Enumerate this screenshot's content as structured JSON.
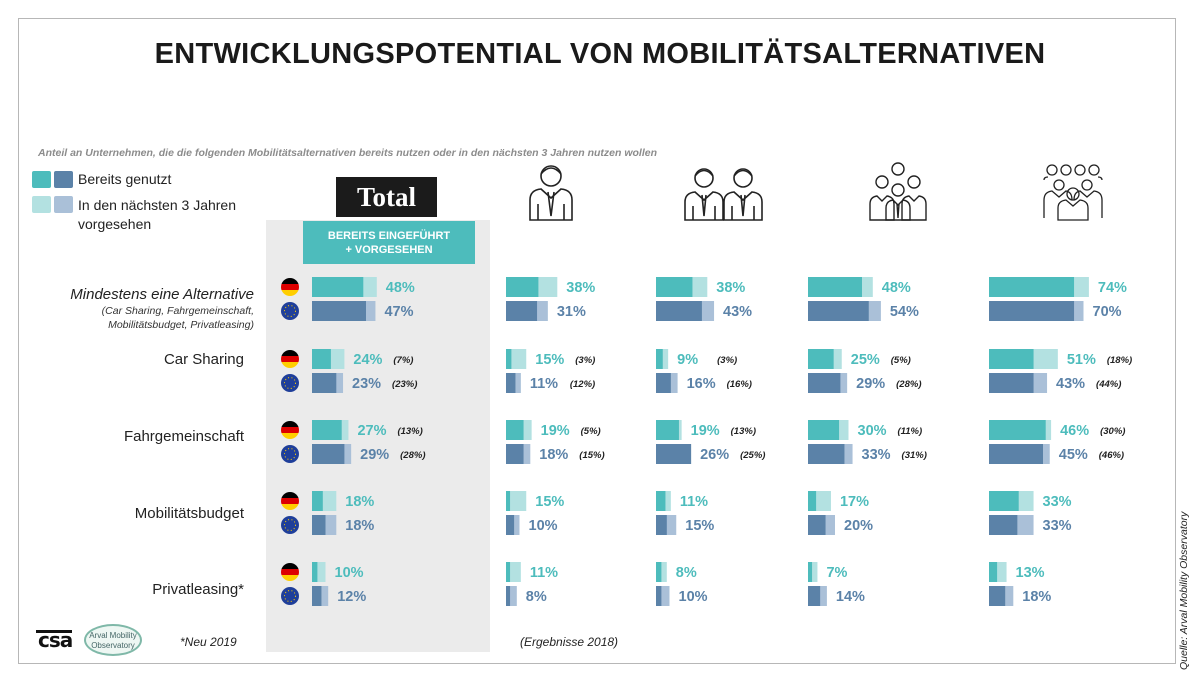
{
  "title": "ENTWICKLUNGSPOTENTIAL VON MOBILITÄTSALTERNATIVEN",
  "subtitle": "Anteil an Unternehmen, die die folgenden Mobilitätsalternativen bereits nutzen oder in den nächsten 3 Jahren nutzen wollen",
  "legend": {
    "used": "Bereits genutzt",
    "planned": "In den nächsten 3 Jahren vorgesehen",
    "planned_line1": "In den nächsten 3 Jahren",
    "planned_line2": "vorgesehen"
  },
  "total_label": "Total",
  "badge": {
    "line1": "BEREITS EINGEFÜHRT",
    "line2": "+ VORGESEHEN"
  },
  "footnote": "*Neu 2019",
  "results_note": "(Ergebnisse 2018)",
  "source": "Quelle: Arval Mobility Observatory",
  "logos": {
    "csa": "csa",
    "arval_line1": "Arval Mobility",
    "arval_line2": "Observatory"
  },
  "colors": {
    "teal_used": "#4dbcbc",
    "teal_planned": "#b3e1e1",
    "blue_used": "#5b82a8",
    "blue_planned": "#aac0d8",
    "de_flag": [
      "#000000",
      "#dd0000",
      "#ffce00"
    ],
    "eu_flag": "#1f3f9a"
  },
  "row_labels": [
    {
      "label": "Mindestens eine Alternative",
      "sub": [
        "(Car Sharing, Fahrgemeinschaft,",
        "Mobilitätsbudget, Privatleasing)"
      ]
    },
    {
      "label": "Car Sharing"
    },
    {
      "label": "Fahrgemeinschaft"
    },
    {
      "label": "Mobilitätsbudget"
    },
    {
      "label": "Privatleasing*"
    }
  ],
  "chart_data": {
    "type": "bar",
    "orientation": "horizontal",
    "title": "ENTWICKLUNGSPOTENTIAL VON MOBILITÄTSALTERNATIVEN",
    "series_meaning": {
      "dark": "Bereits genutzt",
      "light": "In den nächsten 3 Jahren vorgesehen"
    },
    "regions": [
      "Deutschland",
      "Europa"
    ],
    "region_icons": [
      "de-flag-icon",
      "eu-flag-icon"
    ],
    "panels": [
      {
        "icon": "total-label",
        "rows": [
          [
            {
              "total": 48,
              "used": 38
            },
            {
              "total": 47,
              "used": 40
            }
          ],
          [
            {
              "total": 24,
              "used": 14,
              "paren": "(7%)"
            },
            {
              "total": 23,
              "used": 18,
              "paren": "(23%)"
            }
          ],
          [
            {
              "total": 27,
              "used": 22,
              "paren": "(13%)"
            },
            {
              "total": 29,
              "used": 24,
              "paren": "(28%)"
            }
          ],
          [
            {
              "total": 18,
              "used": 8
            },
            {
              "total": 18,
              "used": 10
            }
          ],
          [
            {
              "total": 10,
              "used": 4
            },
            {
              "total": 12,
              "used": 7
            }
          ]
        ]
      },
      {
        "icon": "single-person-icon",
        "rows": [
          [
            {
              "total": 38,
              "used": 24
            },
            {
              "total": 31,
              "used": 23
            }
          ],
          [
            {
              "total": 15,
              "used": 4,
              "paren": "(3%)"
            },
            {
              "total": 11,
              "used": 7,
              "paren": "(12%)"
            }
          ],
          [
            {
              "total": 19,
              "used": 13,
              "paren": "(5%)"
            },
            {
              "total": 18,
              "used": 13,
              "paren": "(15%)"
            }
          ],
          [
            {
              "total": 15,
              "used": 3
            },
            {
              "total": 10,
              "used": 6
            }
          ],
          [
            {
              "total": 11,
              "used": 3
            },
            {
              "total": 8,
              "used": 3
            }
          ]
        ]
      },
      {
        "icon": "two-persons-icon",
        "rows": [
          [
            {
              "total": 38,
              "used": 27
            },
            {
              "total": 43,
              "used": 34
            }
          ],
          [
            {
              "total": 9,
              "used": 5,
              "paren": "(3%)"
            },
            {
              "total": 16,
              "used": 11,
              "paren": "(16%)"
            }
          ],
          [
            {
              "total": 19,
              "used": 17,
              "paren": "(13%)"
            },
            {
              "total": 26,
              "used": 26,
              "paren": "(25%)"
            }
          ],
          [
            {
              "total": 11,
              "used": 7
            },
            {
              "total": 15,
              "used": 8
            }
          ],
          [
            {
              "total": 8,
              "used": 4
            },
            {
              "total": 10,
              "used": 4
            }
          ]
        ]
      },
      {
        "icon": "group-icon",
        "rows": [
          [
            {
              "total": 48,
              "used": 40
            },
            {
              "total": 54,
              "used": 45
            }
          ],
          [
            {
              "total": 25,
              "used": 19,
              "paren": "(5%)"
            },
            {
              "total": 29,
              "used": 24,
              "paren": "(28%)"
            }
          ],
          [
            {
              "total": 30,
              "used": 23,
              "paren": "(11%)"
            },
            {
              "total": 33,
              "used": 27,
              "paren": "(31%)"
            }
          ],
          [
            {
              "total": 17,
              "used": 6
            },
            {
              "total": 20,
              "used": 13
            }
          ],
          [
            {
              "total": 7,
              "used": 3
            },
            {
              "total": 14,
              "used": 9
            }
          ]
        ]
      },
      {
        "icon": "large-group-icon",
        "rows": [
          [
            {
              "total": 74,
              "used": 63
            },
            {
              "total": 70,
              "used": 63
            }
          ],
          [
            {
              "total": 51,
              "used": 33,
              "paren": "(18%)"
            },
            {
              "total": 43,
              "used": 33,
              "paren": "(44%)"
            }
          ],
          [
            {
              "total": 46,
              "used": 42,
              "paren": "(30%)"
            },
            {
              "total": 45,
              "used": 40,
              "paren": "(46%)"
            }
          ],
          [
            {
              "total": 33,
              "used": 22
            },
            {
              "total": 33,
              "used": 21
            }
          ],
          [
            {
              "total": 13,
              "used": 6
            },
            {
              "total": 18,
              "used": 12
            }
          ]
        ]
      }
    ]
  }
}
